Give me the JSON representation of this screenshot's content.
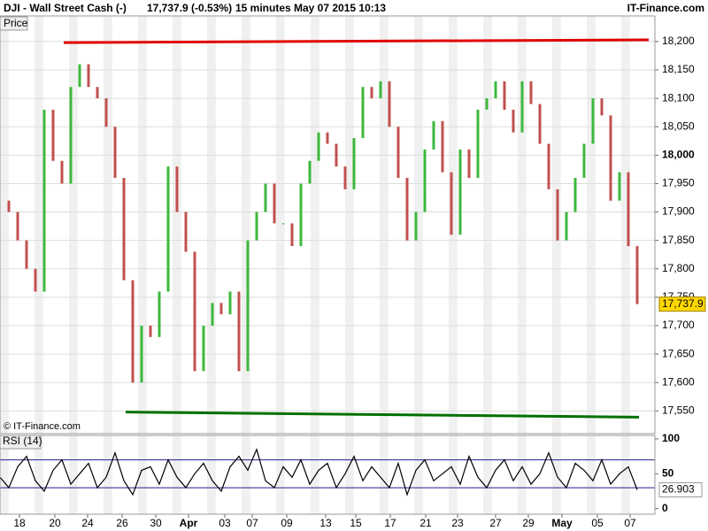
{
  "chart_data": [
    {
      "type": "line",
      "title": "DJI - Wall Street Cash (-)",
      "quote": "17,737.9 (-0.53%)",
      "interval": "15 minutes",
      "timestamp": "May 07 2015 10:13",
      "source": "IT-Finance.com",
      "panel_label": "Price",
      "watermark": "© IT-Finance.com",
      "up_color": "#3cb83c",
      "down_color": "#c0504d",
      "xlim": [
        0,
        74
      ],
      "ylim": [
        17510,
        18245
      ],
      "yticks": [
        {
          "value": 17550,
          "label": "17,550"
        },
        {
          "value": 17600,
          "label": "17,600"
        },
        {
          "value": 17650,
          "label": "17,650"
        },
        {
          "value": 17700,
          "label": "17,700"
        },
        {
          "value": 17750,
          "label": "17,750"
        },
        {
          "value": 17800,
          "label": "17,800"
        },
        {
          "value": 17850,
          "label": "17,850"
        },
        {
          "value": 17900,
          "label": "17,900"
        },
        {
          "value": 17950,
          "label": "17,950"
        },
        {
          "value": 18000,
          "label": "18,000"
        },
        {
          "value": 18050,
          "label": "18,050"
        },
        {
          "value": 18100,
          "label": "18,100"
        },
        {
          "value": 18150,
          "label": "18,150"
        },
        {
          "value": 18200,
          "label": "18,200"
        }
      ],
      "grid": true,
      "values": [
        17920,
        17900,
        17850,
        17800,
        17760,
        18080,
        17990,
        17950,
        18120,
        18160,
        18120,
        18100,
        18050,
        17960,
        17780,
        17600,
        17700,
        17680,
        17760,
        17980,
        17900,
        17830,
        17620,
        17700,
        17740,
        17720,
        17760,
        17620,
        17850,
        17900,
        17950,
        17880,
        17880,
        17840,
        17950,
        17990,
        18040,
        18020,
        17980,
        17940,
        18030,
        18120,
        18100,
        18130,
        18050,
        17960,
        17850,
        17900,
        18010,
        18060,
        17970,
        17860,
        18010,
        17960,
        18080,
        18100,
        18130,
        18080,
        18040,
        18130,
        18090,
        18020,
        17940,
        17850,
        17900,
        17960,
        18020,
        18100,
        18070,
        17920,
        17970,
        17840,
        17737.9
      ],
      "last_label": {
        "value": 17737.9,
        "label": "17,737.9"
      },
      "trend_lines": [
        {
          "color": "#e00000",
          "x": [
            7.2,
            73.3
          ],
          "y": [
            18198,
            18203
          ]
        },
        {
          "color": "#007000",
          "x": [
            14.2,
            72.2
          ],
          "y": [
            17548,
            17539
          ]
        }
      ]
    },
    {
      "type": "line",
      "title": "RSI (14)",
      "color": "#000000",
      "xlim": [
        0,
        74
      ],
      "ylim": [
        -8,
        105
      ],
      "yticks": [
        0,
        50,
        100
      ],
      "reference_lines": [
        70,
        30
      ],
      "reference_color": "#1f1f8f",
      "values": [
        45,
        30,
        60,
        75,
        40,
        25,
        55,
        70,
        35,
        50,
        65,
        30,
        45,
        80,
        40,
        20,
        55,
        60,
        35,
        70,
        45,
        30,
        50,
        65,
        40,
        25,
        60,
        75,
        55,
        85,
        40,
        30,
        60,
        45,
        70,
        35,
        55,
        65,
        30,
        50,
        75,
        40,
        60,
        45,
        30,
        65,
        20,
        55,
        70,
        40,
        50,
        60,
        35,
        75,
        45,
        30,
        55,
        70,
        40,
        60,
        35,
        50,
        80,
        45,
        30,
        65,
        55,
        40,
        70,
        35,
        50,
        60,
        26.903
      ],
      "xticks": [
        {
          "value": 2.2,
          "label": "18"
        },
        {
          "value": 6.2,
          "label": "20"
        },
        {
          "value": 9.9,
          "label": "24"
        },
        {
          "value": 13.8,
          "label": "26"
        },
        {
          "value": 17.6,
          "label": "30"
        },
        {
          "value": 21.3,
          "label": "Apr"
        },
        {
          "value": 25.4,
          "label": "03"
        },
        {
          "value": 28.5,
          "label": "07"
        },
        {
          "value": 32.4,
          "label": "09"
        },
        {
          "value": 36.8,
          "label": "13"
        },
        {
          "value": 40.2,
          "label": "15"
        },
        {
          "value": 44.1,
          "label": "17"
        },
        {
          "value": 48.1,
          "label": "21"
        },
        {
          "value": 51.7,
          "label": "23"
        },
        {
          "value": 56,
          "label": "27"
        },
        {
          "value": 59.7,
          "label": "29"
        },
        {
          "value": 63.5,
          "label": "May"
        },
        {
          "value": 67.5,
          "label": "05"
        },
        {
          "value": 71.2,
          "label": "07"
        }
      ]
    }
  ]
}
